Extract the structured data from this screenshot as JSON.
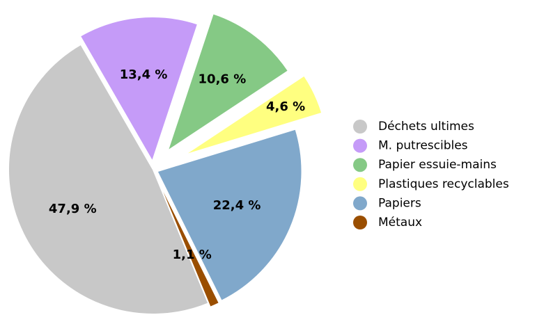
{
  "chart_data": {
    "type": "pie",
    "categories": [
      "Déchets ultimes",
      "M. putrescibles",
      "Papier essuie-mains",
      "Plastiques recyclables",
      "Papiers",
      "Métaux"
    ],
    "values": [
      47.9,
      13.4,
      10.6,
      4.6,
      22.4,
      1.1
    ],
    "value_labels": [
      "47,9 %",
      "13,4 %",
      "10,6 %",
      "4,6 %",
      "22,4 %",
      "1,1 %"
    ],
    "colors": [
      "#c8c8c8",
      "#c59bf8",
      "#85c985",
      "#ffff80",
      "#80a8cb",
      "#9a4e00"
    ],
    "legend": "right"
  }
}
